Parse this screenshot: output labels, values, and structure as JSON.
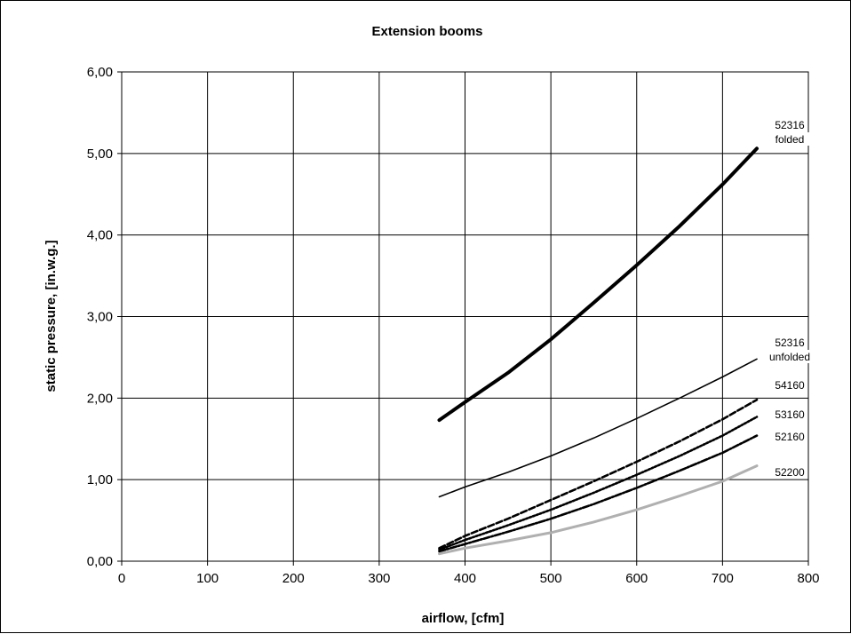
{
  "chart_data": {
    "type": "line",
    "title": "Extension booms",
    "xlabel": "airflow, [cfm]",
    "ylabel": "static pressure, [in.w.g.]",
    "xlim": [
      0,
      800
    ],
    "ylim": [
      0,
      6
    ],
    "x_ticks": [
      "0",
      "100",
      "200",
      "300",
      "400",
      "500",
      "600",
      "700",
      "800"
    ],
    "y_ticks": [
      "0,00",
      "1,00",
      "2,00",
      "3,00",
      "4,00",
      "5,00",
      "6,00"
    ],
    "grid": true,
    "legend": "none",
    "series": [
      {
        "name": "52316 folded",
        "label_lines": [
          "52316",
          "folded"
        ],
        "color": "#000000",
        "style": "solid-thick",
        "x": [
          370,
          400,
          450,
          500,
          550,
          600,
          650,
          700,
          740
        ],
        "y": [
          1.73,
          1.95,
          2.31,
          2.72,
          3.17,
          3.63,
          4.11,
          4.62,
          5.06
        ]
      },
      {
        "name": "52316 unfolded",
        "label_lines": [
          "52316",
          "unfolded"
        ],
        "color": "#000000",
        "style": "solid",
        "x": [
          370,
          400,
          450,
          500,
          550,
          600,
          650,
          700,
          740
        ],
        "y": [
          0.79,
          0.91,
          1.09,
          1.29,
          1.51,
          1.75,
          2.0,
          2.26,
          2.48
        ]
      },
      {
        "name": "54160",
        "label_lines": [
          "54160"
        ],
        "color": "#000000",
        "style": "dashed",
        "x": [
          370,
          400,
          450,
          500,
          550,
          600,
          650,
          700,
          740
        ],
        "y": [
          0.16,
          0.31,
          0.52,
          0.75,
          0.98,
          1.22,
          1.47,
          1.74,
          1.98
        ]
      },
      {
        "name": "53160",
        "label_lines": [
          "53160"
        ],
        "color": "#000000",
        "style": "dotted",
        "x": [
          370,
          400,
          450,
          500,
          550,
          600,
          650,
          700,
          740
        ],
        "y": [
          0.14,
          0.26,
          0.44,
          0.63,
          0.84,
          1.06,
          1.29,
          1.54,
          1.77
        ]
      },
      {
        "name": "52160",
        "label_lines": [
          "52160"
        ],
        "color": "#000000",
        "style": "dash-dot",
        "x": [
          370,
          400,
          450,
          500,
          550,
          600,
          650,
          700,
          740
        ],
        "y": [
          0.12,
          0.21,
          0.36,
          0.52,
          0.7,
          0.9,
          1.11,
          1.33,
          1.54
        ]
      },
      {
        "name": "52200",
        "label_lines": [
          "52200"
        ],
        "color": "#b0b0b0",
        "style": "solid-gray",
        "x": [
          370,
          400,
          450,
          500,
          550,
          600,
          650,
          700,
          740
        ],
        "y": [
          0.09,
          0.16,
          0.25,
          0.35,
          0.48,
          0.63,
          0.8,
          0.98,
          1.17
        ]
      }
    ]
  }
}
